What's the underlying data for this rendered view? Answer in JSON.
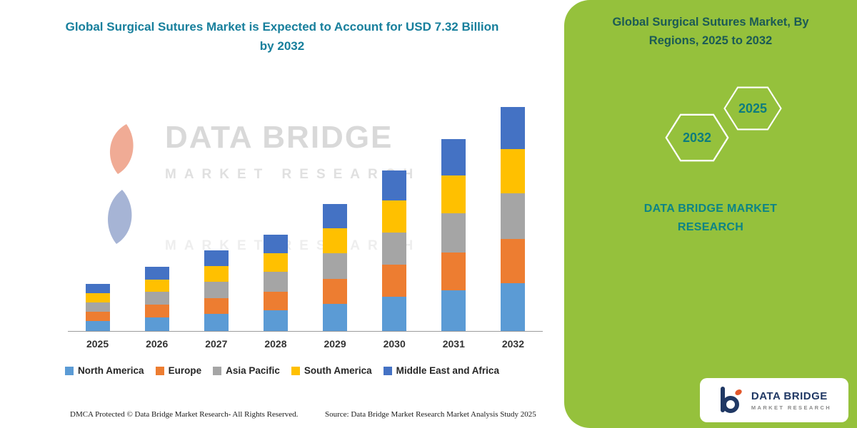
{
  "left": {
    "title": "Global Surgical Sutures Market is Expected to Account for USD 7.32 Billion by 2032",
    "watermark": {
      "line1": "DATA BRIDGE",
      "line2": "MARKET RESEARCH",
      "line3": "MARKET RESEARCH"
    },
    "footer_left": "DMCA Protected © Data Bridge Market Research-  All Rights Reserved.",
    "footer_right": "Source: Data Bridge Market Research  Market Analysis Study 2025"
  },
  "chart_data": {
    "type": "bar",
    "stacked": true,
    "title": "Global Surgical Sutures Market is Expected to Account for USD 7.32 Billion by 2032",
    "unit": "USD Billion",
    "categories": [
      "2025",
      "2026",
      "2027",
      "2028",
      "2029",
      "2030",
      "2031",
      "2032"
    ],
    "series": [
      {
        "name": "North America",
        "color": "#5B9BD5",
        "values": [
          0.33,
          0.45,
          0.56,
          0.67,
          0.88,
          1.12,
          1.34,
          1.56
        ]
      },
      {
        "name": "Europe",
        "color": "#ED7D31",
        "values": [
          0.3,
          0.41,
          0.52,
          0.62,
          0.82,
          1.04,
          1.24,
          1.45
        ]
      },
      {
        "name": "Asia Pacific",
        "color": "#A5A5A5",
        "values": [
          0.31,
          0.42,
          0.53,
          0.64,
          0.84,
          1.07,
          1.28,
          1.49
        ]
      },
      {
        "name": "South America",
        "color": "#FFC000",
        "values": [
          0.3,
          0.41,
          0.52,
          0.62,
          0.82,
          1.04,
          1.24,
          1.45
        ]
      },
      {
        "name": "Middle East and Africa",
        "color": "#4472C4",
        "values": [
          0.29,
          0.4,
          0.5,
          0.59,
          0.79,
          0.99,
          1.19,
          1.37
        ]
      }
    ],
    "totals": [
      1.53,
      2.09,
      2.63,
      3.14,
      4.15,
      5.26,
      6.29,
      7.32
    ],
    "ylim": [
      0,
      7.7
    ],
    "grid": false,
    "legend_position": "bottom",
    "xlabel": "",
    "ylabel": ""
  },
  "right_panel": {
    "bg_color": "#95c13c",
    "heading": "Global Surgical Sutures Market, By Regions, 2025 to 2032",
    "hexagons": [
      "2032",
      "2025"
    ],
    "brand_line1": "DATA BRIDGE MARKET",
    "brand_line2": "RESEARCH",
    "logo_card": {
      "brand": "DATA BRIDGE",
      "sub": "MARKET RESEARCH"
    }
  },
  "colors": {
    "title_teal": "#177f9c",
    "panel_heading_teal": "#1b5a55",
    "brand_teal": "#0c8486",
    "hexagon_outline": "#ffffff",
    "axis_line": "#9c9c9c",
    "logo_navy": "#203864",
    "logo_orange": "#e2572b"
  }
}
